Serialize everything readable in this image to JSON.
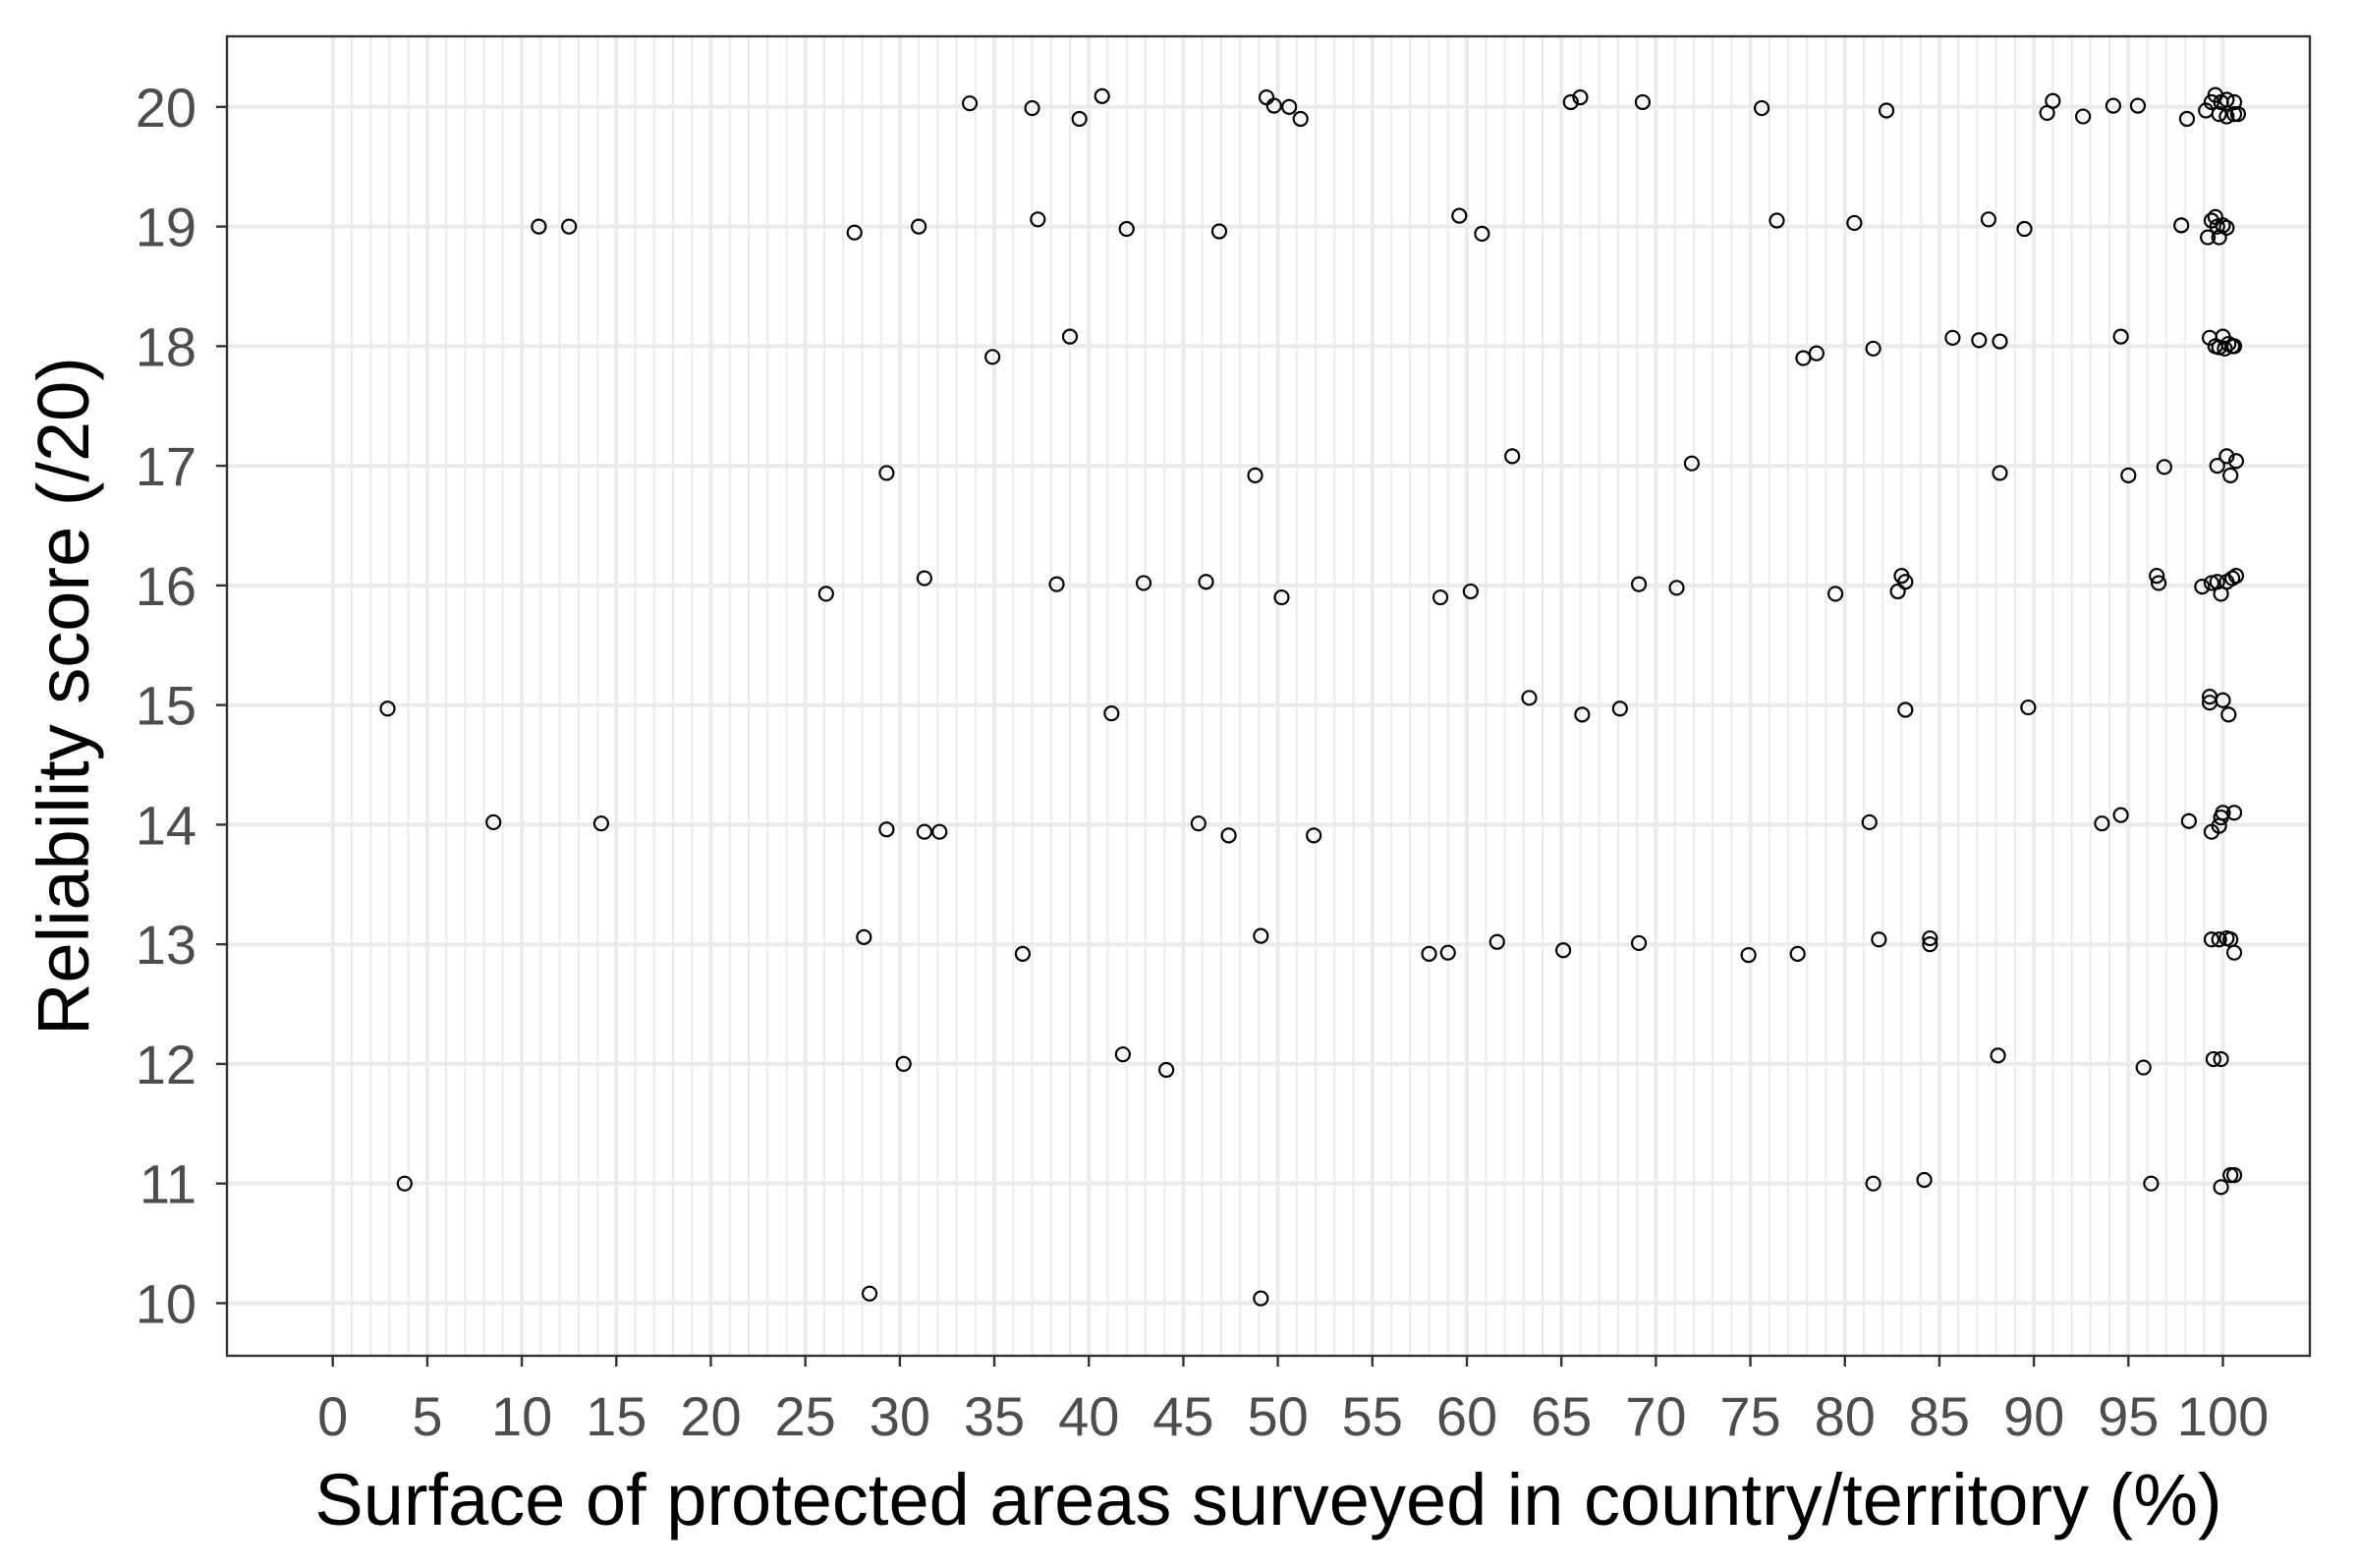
{
  "chart_data": {
    "type": "scatter",
    "xlabel": "Surface of protected areas surveyed in country/territory (%)",
    "ylabel": "Reliability score (/20)",
    "xlim": [
      -5.6,
      104.6
    ],
    "ylim": [
      9.56,
      20.59
    ],
    "x_ticks": [
      0,
      5,
      10,
      15,
      20,
      25,
      30,
      35,
      40,
      45,
      50,
      55,
      60,
      65,
      70,
      75,
      80,
      85,
      90,
      95,
      100
    ],
    "y_ticks": [
      10,
      11,
      12,
      13,
      14,
      15,
      16,
      17,
      18,
      19,
      20
    ],
    "grid": {
      "major": true,
      "x_minor_step": 1
    },
    "colors": {
      "points": "#000000",
      "grid": "#EBEBEB",
      "panel_border": "#333333",
      "tick_label": "#4D4D4D",
      "background": "#FFFFFF"
    },
    "x": [
      33.7,
      37.0,
      39.5,
      40.7,
      49.4,
      49.8,
      50.6,
      51.2,
      65.5,
      66.0,
      69.3,
      75.6,
      82.2,
      90.7,
      91.0,
      92.6,
      94.2,
      95.5,
      98.1,
      99.1,
      99.4,
      99.6,
      99.8,
      99.9,
      100.2,
      100.2,
      100.6,
      100.6,
      100.8,
      10.9,
      12.5,
      27.6,
      31.0,
      37.3,
      42.0,
      46.9,
      59.6,
      60.8,
      76.4,
      80.5,
      87.6,
      89.5,
      97.8,
      99.2,
      99.4,
      99.6,
      99.7,
      99.8,
      100.0,
      100.2,
      34.9,
      39.0,
      77.8,
      78.5,
      81.5,
      85.7,
      87.1,
      88.2,
      94.6,
      99.3,
      99.6,
      99.8,
      100.0,
      100.1,
      100.3,
      100.5,
      100.6,
      29.3,
      48.8,
      62.4,
      71.9,
      88.2,
      95.0,
      96.9,
      99.7,
      100.2,
      100.4,
      100.7,
      26.1,
      31.3,
      38.3,
      42.9,
      46.2,
      50.2,
      58.6,
      60.2,
      69.1,
      71.1,
      79.5,
      82.8,
      83.0,
      83.2,
      96.5,
      96.6,
      98.9,
      99.4,
      99.7,
      99.9,
      100.2,
      100.5,
      100.7,
      2.9,
      41.2,
      63.3,
      66.1,
      68.1,
      83.2,
      89.7,
      99.3,
      99.3,
      100.0,
      100.3,
      8.5,
      14.2,
      29.3,
      31.3,
      32.1,
      45.8,
      47.4,
      51.9,
      81.3,
      93.6,
      94.6,
      98.2,
      99.4,
      99.8,
      99.9,
      100.0,
      100.6,
      28.1,
      36.5,
      49.1,
      58.0,
      59.0,
      61.6,
      65.1,
      69.1,
      74.9,
      77.5,
      81.8,
      84.5,
      84.5,
      99.4,
      99.8,
      100.2,
      100.4,
      100.6,
      30.2,
      41.8,
      44.1,
      88.1,
      95.8,
      99.5,
      99.9,
      3.8,
      81.5,
      84.2,
      96.2,
      99.9,
      100.4,
      100.6,
      28.4,
      49.1
    ],
    "y": [
      20.03,
      19.99,
      19.9,
      20.09,
      20.08,
      20.01,
      20.0,
      19.9,
      20.04,
      20.08,
      20.04,
      19.99,
      19.97,
      19.95,
      20.05,
      19.92,
      20.01,
      20.01,
      19.9,
      19.97,
      20.04,
      20.1,
      19.94,
      20.04,
      20.06,
      19.92,
      20.04,
      19.94,
      19.94,
      19.0,
      19.0,
      18.95,
      19.0,
      19.06,
      18.98,
      18.96,
      19.09,
      18.94,
      19.05,
      19.03,
      19.06,
      18.98,
      19.01,
      18.91,
      19.05,
      19.08,
      19.0,
      18.91,
      19.01,
      18.99,
      17.91,
      18.08,
      17.9,
      17.94,
      17.98,
      18.07,
      18.05,
      18.04,
      18.08,
      18.07,
      18.0,
      17.99,
      18.08,
      17.98,
      18.02,
      18.0,
      18.0,
      16.94,
      16.92,
      17.08,
      17.02,
      16.94,
      16.92,
      16.99,
      17.0,
      17.08,
      16.92,
      17.04,
      15.93,
      16.06,
      16.01,
      16.02,
      16.03,
      15.9,
      15.9,
      15.95,
      16.01,
      15.98,
      15.93,
      15.95,
      16.08,
      16.03,
      16.08,
      16.02,
      15.99,
      16.02,
      16.03,
      15.93,
      16.03,
      16.06,
      16.08,
      14.97,
      14.93,
      15.06,
      14.92,
      14.97,
      14.96,
      14.98,
      15.07,
      15.02,
      15.04,
      14.92,
      14.02,
      14.01,
      13.96,
      13.94,
      13.94,
      14.01,
      13.91,
      13.91,
      14.02,
      14.01,
      14.08,
      14.03,
      13.94,
      13.99,
      14.06,
      14.1,
      14.1,
      13.06,
      12.92,
      13.07,
      12.92,
      12.93,
      13.02,
      12.95,
      13.01,
      12.91,
      12.92,
      13.04,
      13.05,
      13.0,
      13.04,
      13.04,
      13.05,
      13.04,
      12.93,
      12.0,
      12.08,
      11.95,
      12.07,
      11.97,
      12.04,
      12.04,
      11.0,
      11.0,
      11.03,
      11.0,
      10.97,
      11.07,
      11.07,
      10.08,
      10.04
    ]
  }
}
